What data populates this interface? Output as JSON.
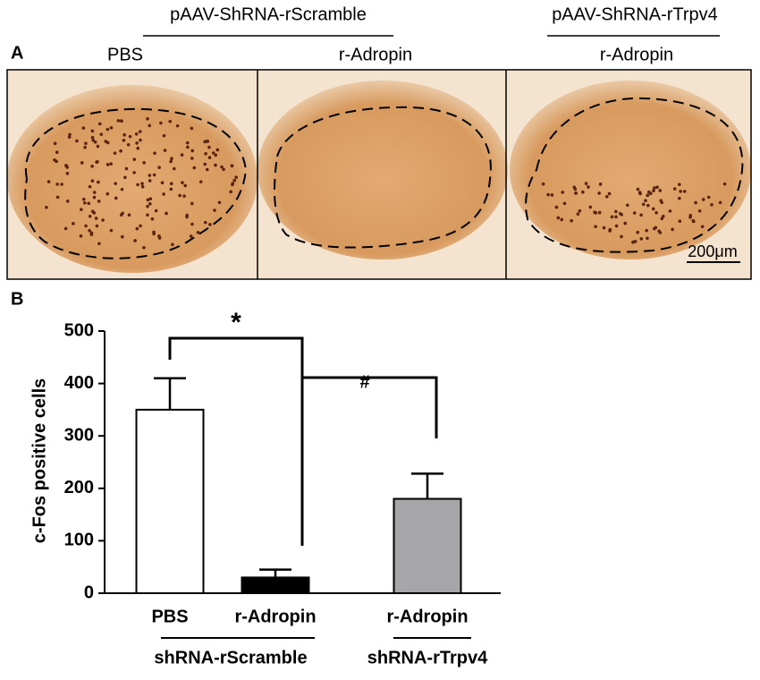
{
  "panel_a": {
    "label": "A",
    "groups": [
      "pAAV-ShRNA-rScramble",
      "pAAV-ShRNA-rTrpv4"
    ],
    "conditions": [
      "PBS",
      "r-Adropin",
      "r-Adropin"
    ],
    "scale_bar": "200μm"
  },
  "chart_data": {
    "type": "bar",
    "panel_label": "B",
    "y_label": "c-Fos positive cells",
    "categories": [
      "PBS",
      "r-Adropin",
      "r-Adropin"
    ],
    "values": [
      350,
      30,
      180
    ],
    "errors": [
      60,
      15,
      48
    ],
    "colors": [
      "#ffffff",
      "#000000",
      "#a6a6a8"
    ],
    "groups": [
      "shRNA-rScramble",
      "shRNA-rTrpv4"
    ],
    "annotations": [
      "*",
      "#"
    ],
    "ylim": [
      0,
      500
    ],
    "yticks": [
      0,
      100,
      200,
      300,
      400,
      500
    ]
  }
}
